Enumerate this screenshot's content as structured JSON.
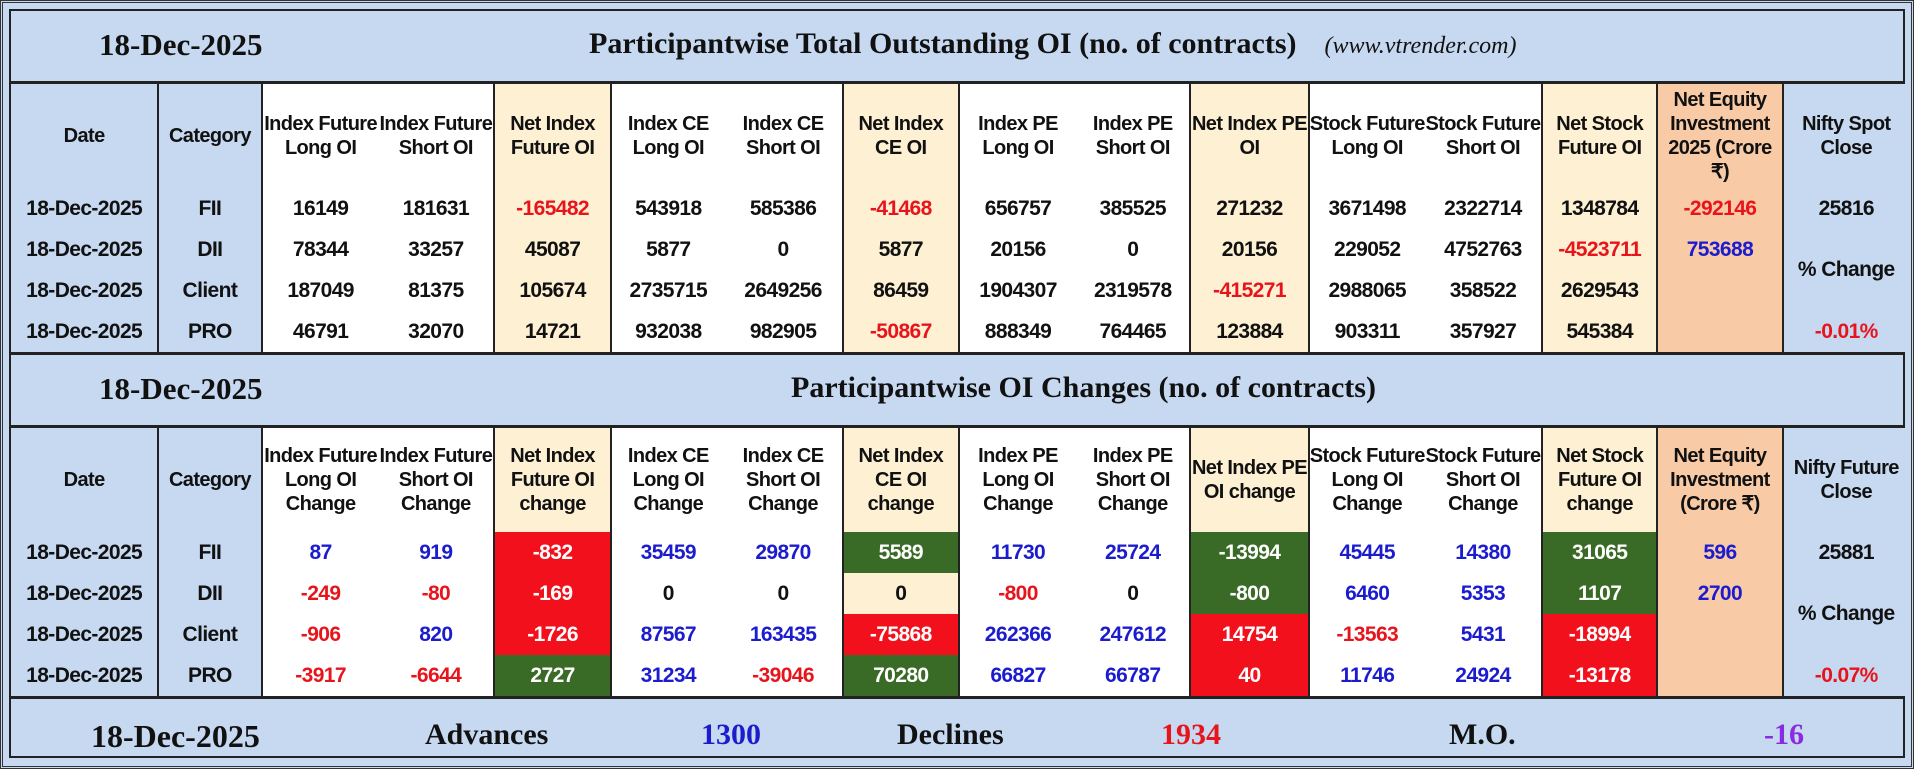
{
  "colors": {
    "header_blue": "#c6d9f1",
    "net_cream": "#fdf0d3",
    "equity_peach": "#f8cba6",
    "positive": "#1c1ccf",
    "negative": "#e8141c",
    "highlight_red": "#f2101c",
    "highlight_green": "#3a6b26"
  },
  "section1": {
    "date": "18-Dec-2025",
    "title": "Participantwise Total Outstanding OI (no. of contracts)",
    "site": "(www.vtrender.com)",
    "headers": [
      "Date",
      "Category",
      "Index Future Long OI",
      "Index Future Short OI",
      "Net Index Future OI",
      "Index CE Long OI",
      "Index CE Short OI",
      "Net Index CE OI",
      "Index PE Long OI",
      "Index PE Short OI",
      "Net Index PE OI",
      "Stock Future Long OI",
      "Stock Future Short OI",
      "Net Stock Future OI",
      "Net Equity Investment 2025 (Crore ₹)",
      "Nifty Spot Close"
    ],
    "rows": [
      {
        "date": "18-Dec-2025",
        "category": "FII",
        "values": [
          "16149",
          "181631",
          "-165482",
          "543918",
          "585386",
          "-41468",
          "656757",
          "385525",
          "271232",
          "3671498",
          "2322714",
          "1348784"
        ],
        "net_equity": "-292146"
      },
      {
        "date": "18-Dec-2025",
        "category": "DII",
        "values": [
          "78344",
          "33257",
          "45087",
          "5877",
          "0",
          "5877",
          "20156",
          "0",
          "20156",
          "229052",
          "4752763",
          "-4523711"
        ],
        "net_equity": "753688"
      },
      {
        "date": "18-Dec-2025",
        "category": "Client",
        "values": [
          "187049",
          "81375",
          "105674",
          "2735715",
          "2649256",
          "86459",
          "1904307",
          "2319578",
          "-415271",
          "2988065",
          "358522",
          "2629543"
        ],
        "net_equity": ""
      },
      {
        "date": "18-Dec-2025",
        "category": "PRO",
        "values": [
          "46791",
          "32070",
          "14721",
          "932038",
          "982905",
          "-50867",
          "888349",
          "764465",
          "123884",
          "903311",
          "357927",
          "545384"
        ],
        "net_equity": ""
      }
    ],
    "nifty_close": "25816",
    "pct_change_label": "% Change",
    "pct_change": "-0.01%"
  },
  "section2": {
    "date": "18-Dec-2025",
    "title": "Participantwise OI Changes (no. of contracts)",
    "headers": [
      "Date",
      "Category",
      "Index Future Long OI Change",
      "Index Future Short OI Change",
      "Net Index Future OI change",
      "Index CE Long OI Change",
      "Index CE Short OI Change",
      "Net Index CE OI change",
      "Index PE Long OI Change",
      "Index PE Short OI Change",
      "Net Index PE OI change",
      "Stock Future Long OI Change",
      "Stock Future Short OI Change",
      "Net Stock Future OI change",
      "Net Equity Investment (Crore ₹)",
      "Nifty Future Close"
    ],
    "rows": [
      {
        "date": "18-Dec-2025",
        "category": "FII",
        "values": [
          "87",
          "919",
          "-832",
          "35459",
          "29870",
          "5589",
          "11730",
          "25724",
          "-13994",
          "45445",
          "14380",
          "31065"
        ],
        "highlights": [
          "red",
          "green",
          "green",
          "green"
        ],
        "net_equity": "596"
      },
      {
        "date": "18-Dec-2025",
        "category": "DII",
        "values": [
          "-249",
          "-80",
          "-169",
          "0",
          "0",
          "0",
          "-800",
          "0",
          "-800",
          "6460",
          "5353",
          "1107"
        ],
        "highlights": [
          "red",
          "none",
          "green",
          "green"
        ],
        "net_equity": "2700"
      },
      {
        "date": "18-Dec-2025",
        "category": "Client",
        "values": [
          "-906",
          "820",
          "-1726",
          "87567",
          "163435",
          "-75868",
          "262366",
          "247612",
          "14754",
          "-13563",
          "5431",
          "-18994"
        ],
        "highlights": [
          "red",
          "red",
          "red",
          "red"
        ],
        "net_equity": ""
      },
      {
        "date": "18-Dec-2025",
        "category": "PRO",
        "values": [
          "-3917",
          "-6644",
          "2727",
          "31234",
          "-39046",
          "70280",
          "66827",
          "66787",
          "40",
          "11746",
          "24924",
          "-13178"
        ],
        "highlights": [
          "green",
          "green",
          "red",
          "red"
        ],
        "net_equity": ""
      }
    ],
    "nifty_close": "25881",
    "pct_change_label": "% Change",
    "pct_change": "-0.07%"
  },
  "breadth": {
    "date": "18-Dec-2025",
    "advances_label": "Advances",
    "advances": "1300",
    "declines_label": "Declines",
    "declines": "1934",
    "mo_label": "M.O.",
    "mo": "-16"
  }
}
